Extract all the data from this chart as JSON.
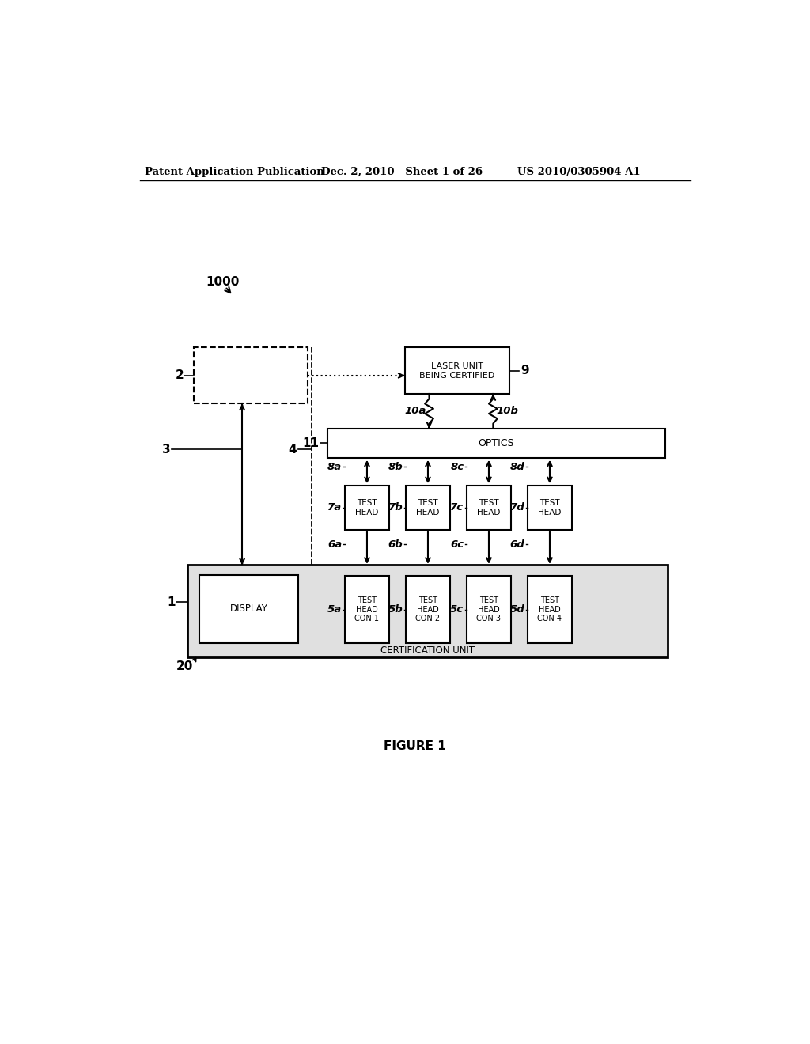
{
  "bg_color": "#ffffff",
  "header_left": "Patent Application Publication",
  "header_mid": "Dec. 2, 2010   Sheet 1 of 26",
  "header_right": "US 2010/0305904 A1",
  "figure_label": "FIGURE 1",
  "label_1000": "1000",
  "label_2": "2",
  "label_3": "3",
  "label_4": "4",
  "label_9": "9",
  "label_11": "11",
  "label_1": "1",
  "label_20": "20",
  "label_10a": "10a",
  "label_10b": "10b",
  "label_7a": "7a",
  "label_7b": "7b",
  "label_7c": "7c",
  "label_7d": "7d",
  "label_8a": "8a",
  "label_8b": "8b",
  "label_8c": "8c",
  "label_8d": "8d",
  "label_6a": "6a",
  "label_6b": "6b",
  "label_6c": "6c",
  "label_6d": "6d",
  "label_5a": "5a",
  "label_5b": "5b",
  "label_5c": "5c",
  "label_5d": "5d",
  "text_laser": "LASER UNIT\nBEING CERTIFIED",
  "text_optics": "OPTICS",
  "text_display": "DISPLAY",
  "text_cert": "CERTIFICATION UNIT",
  "text_testhead": "TEST\nHEAD",
  "text_con1": "TEST\nHEAD\nCON 1",
  "text_con2": "TEST\nHEAD\nCON 2",
  "text_con3": "TEST\nHEAD\nCON 3",
  "text_con4": "TEST\nHEAD\nCON 4"
}
